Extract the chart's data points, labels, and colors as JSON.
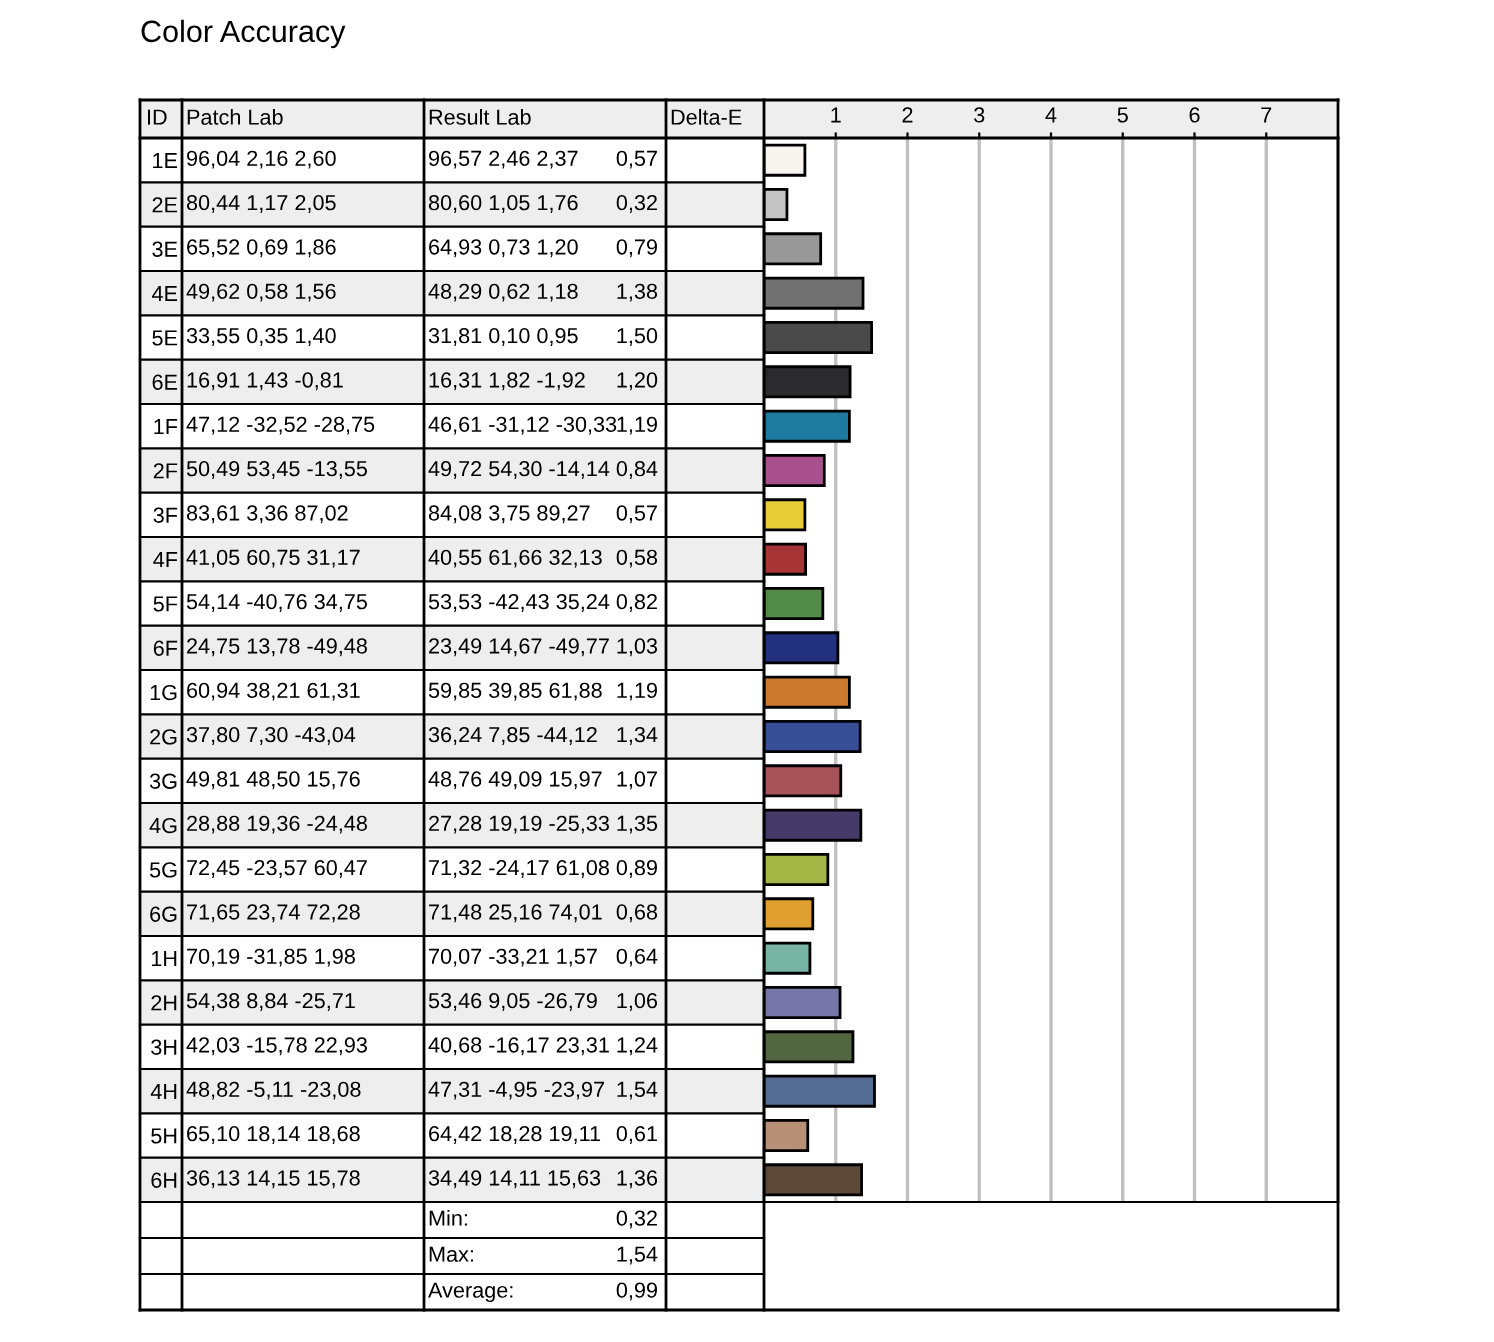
{
  "chart_data": {
    "type": "bar",
    "orientation": "horizontal",
    "title": "Color Accuracy",
    "categories": [
      "1E",
      "2E",
      "3E",
      "4E",
      "5E",
      "6E",
      "1F",
      "2F",
      "3F",
      "4F",
      "5F",
      "6F",
      "1G",
      "2G",
      "3G",
      "4G",
      "5G",
      "6G",
      "1H",
      "2H",
      "3H",
      "4H",
      "5H",
      "6H"
    ],
    "values": [
      0.57,
      0.32,
      0.79,
      1.38,
      1.5,
      1.2,
      1.19,
      0.84,
      0.57,
      0.58,
      0.82,
      1.03,
      1.19,
      1.34,
      1.07,
      1.35,
      0.89,
      0.68,
      0.64,
      1.06,
      1.24,
      1.54,
      0.61,
      1.36
    ],
    "value_labels": [
      "0,57",
      "0,32",
      "0,79",
      "1,38",
      "1,50",
      "1,20",
      "1,19",
      "0,84",
      "0,57",
      "0,58",
      "0,82",
      "1,03",
      "1,19",
      "1,34",
      "1,07",
      "1,35",
      "0,89",
      "0,68",
      "0,64",
      "1,06",
      "1,24",
      "1,54",
      "0,61",
      "1,36"
    ],
    "colors": [
      "#f8f4f0",
      "#c4c4c4",
      "#999999",
      "#717171",
      "#4a4a4a",
      "#2b2b2d",
      "#1f7aa0",
      "#a8508e",
      "#e8cc38",
      "#a83535",
      "#528a48",
      "#22307e",
      "#cc7a2e",
      "#374f96",
      "#a8535a",
      "#463a6a",
      "#a4b646",
      "#e0a030",
      "#78b4a4",
      "#7676a8",
      "#526640",
      "#546c94",
      "#b89078",
      "#5e4838"
    ],
    "xlim": [
      0,
      8
    ],
    "x2lim": [
      0,
      8
    ],
    "x2ticks": [
      1,
      2,
      3,
      4,
      5,
      6,
      7
    ],
    "grid": "x",
    "annotations": [
      "ID",
      "Patch Lab",
      "Result Lab",
      "Delta-E",
      "96,04 2,16 2,60",
      "96,57 2,46 2,37",
      "80,44 1,17 2,05",
      "80,60 1,05 1,76",
      "65,52 0,69 1,86",
      "64,93 0,73 1,20",
      "49,62 0,58 1,56",
      "48,29 0,62 1,18",
      "33,55 0,35 1,40",
      "31,81 0,10 0,95",
      "16,91 1,43 -0,81",
      "16,31 1,82 -1,92",
      "47,12 -32,52 -28,75",
      "46,61 -31,12 -30,33",
      "50,49 53,45 -13,55",
      "49,72 54,30 -14,14",
      "83,61 3,36 87,02",
      "84,08 3,75 89,27",
      "41,05 60,75 31,17",
      "40,55 61,66 32,13",
      "54,14 -40,76 34,75",
      "53,53 -42,43 35,24",
      "24,75 13,78 -49,48",
      "23,49 14,67 -49,77",
      "60,94 38,21 61,31",
      "59,85 39,85 61,88",
      "37,80 7,30 -43,04",
      "36,24 7,85 -44,12",
      "49,81 48,50 15,76",
      "48,76 49,09 15,97",
      "28,88 19,36 -24,48",
      "27,28 19,19 -25,33",
      "72,45 -23,57 60,47",
      "71,32 -24,17 61,08",
      "71,65 23,74 72,28",
      "71,48 25,16 74,01",
      "70,19 -31,85 1,98",
      "70,07 -33,21 1,57",
      "54,38 8,84 -25,71",
      "53,46 9,05 -26,79",
      "42,03 -15,78 22,93",
      "40,68 -16,17 23,31",
      "48,82 -5,11 -23,08",
      "47,31 -4,95 -23,97",
      "65,10 18,14 18,68",
      "64,42 18,28 19,11",
      "36,13 14,15 15,78",
      "34,49 14,11 15,63",
      "Min:",
      "0,32",
      "Max:",
      "1,54",
      "Average:",
      "0,99"
    ]
  }
}
